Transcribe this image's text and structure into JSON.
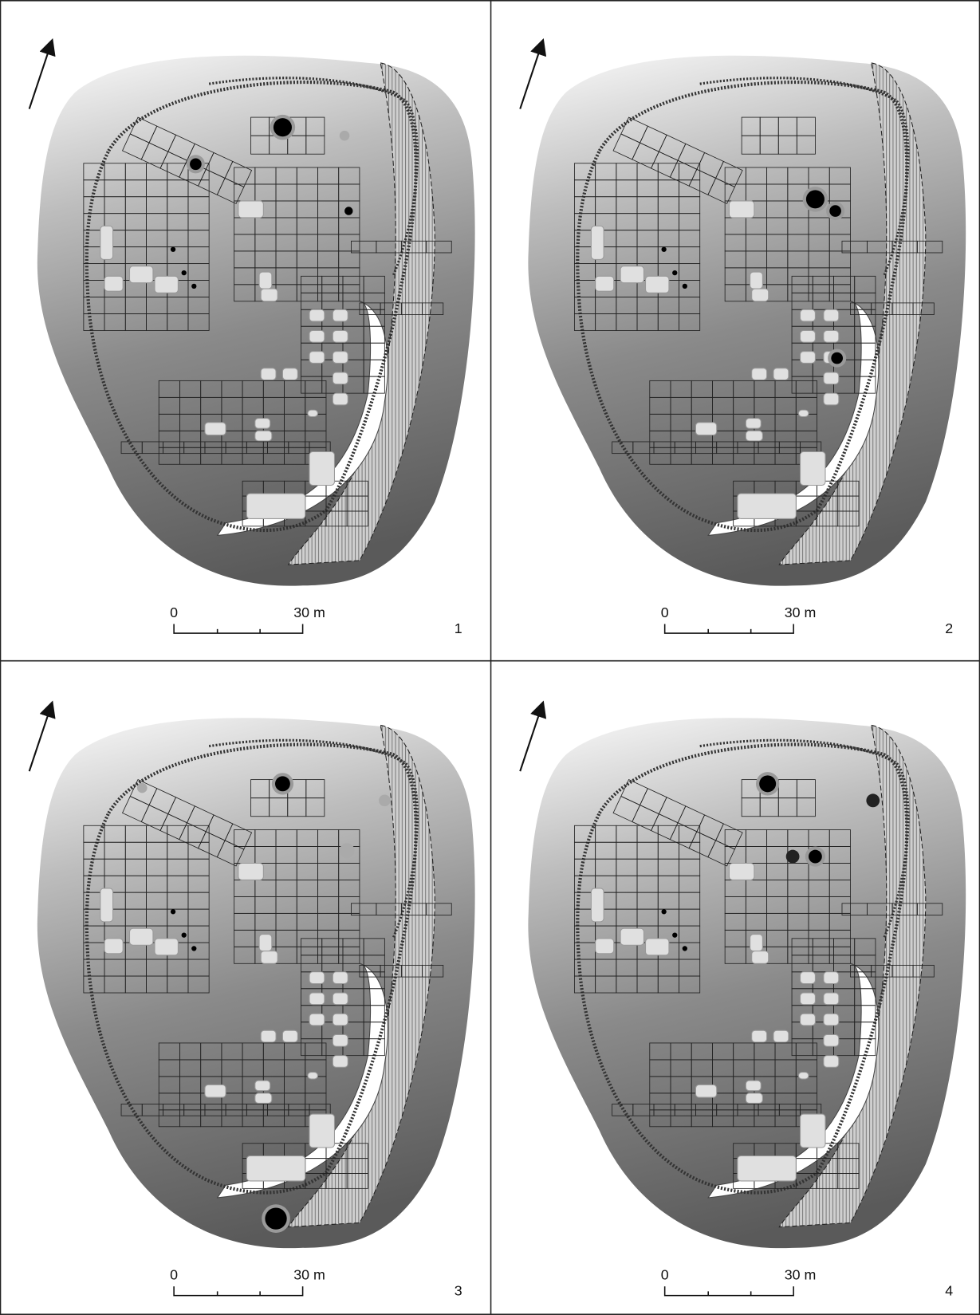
{
  "panels": [
    {
      "label": "1",
      "scale_bar": {
        "start": "0",
        "end": "30 m"
      }
    },
    {
      "label": "2",
      "scale_bar": {
        "start": "0",
        "end": "30 m"
      }
    },
    {
      "label": "3",
      "scale_bar": {
        "start": "0",
        "end": "30 m"
      }
    },
    {
      "label": "4",
      "scale_bar": {
        "start": "0",
        "end": "30 m"
      }
    }
  ]
}
